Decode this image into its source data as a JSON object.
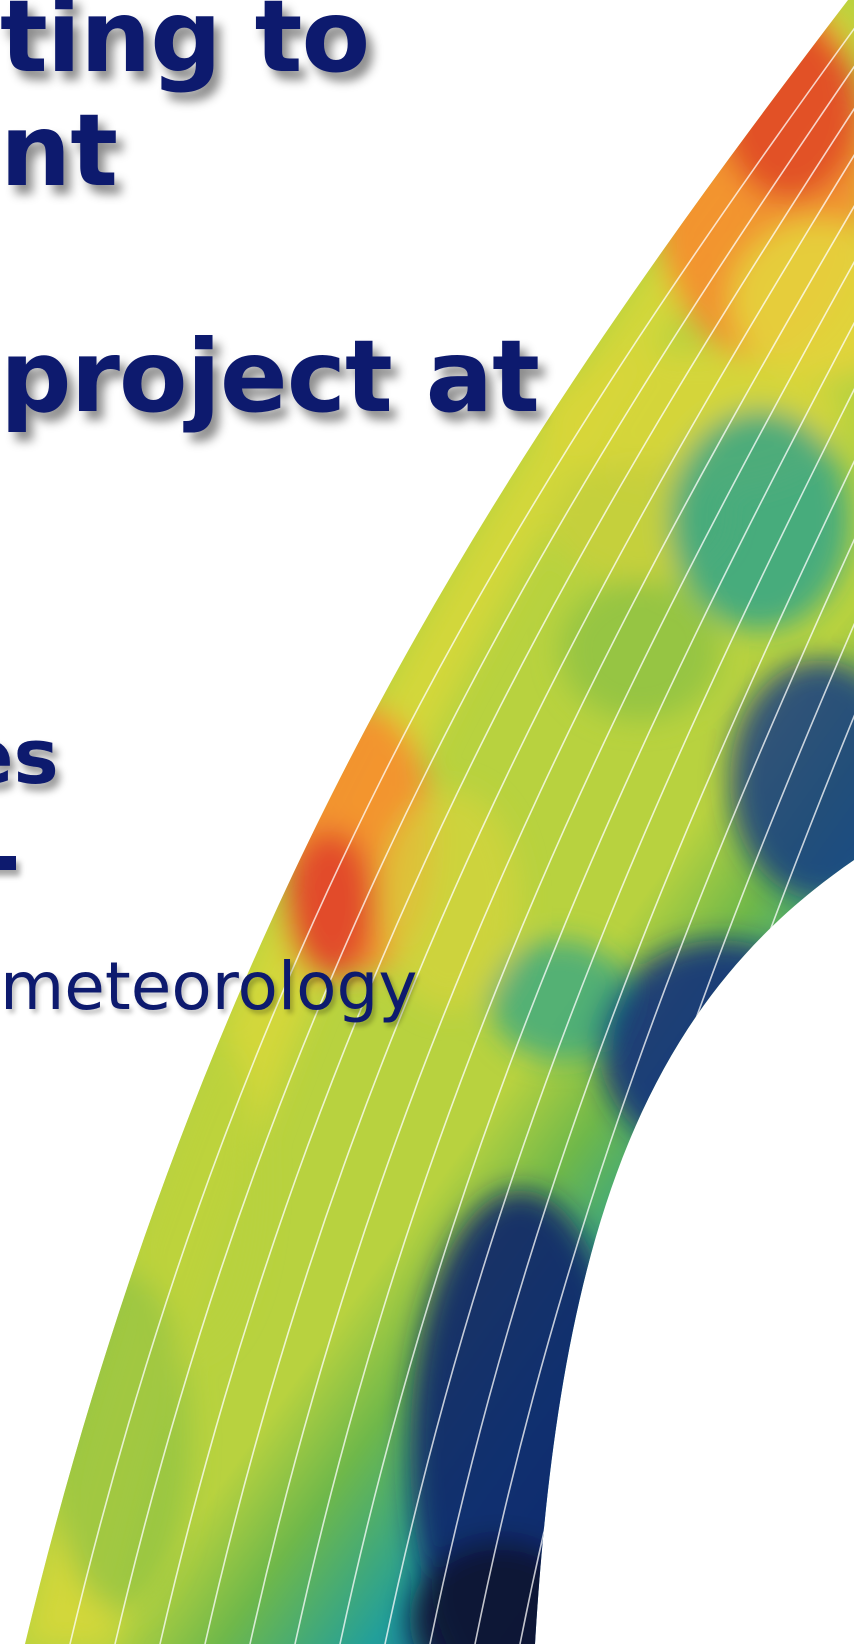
{
  "slide": {
    "heading_line_1": "ting to",
    "heading_line_2": "nt",
    "heading_line_3": "project at",
    "subheading": "es",
    "body_line": "meteorology"
  },
  "artwork": {
    "icon": "atmospheric-field-arc-image",
    "colors": [
      "#0a1f5c",
      "#1746a0",
      "#1f8fae",
      "#2aa38a",
      "#a7c93a",
      "#e3d93a",
      "#f59a2f",
      "#e0452a"
    ]
  }
}
